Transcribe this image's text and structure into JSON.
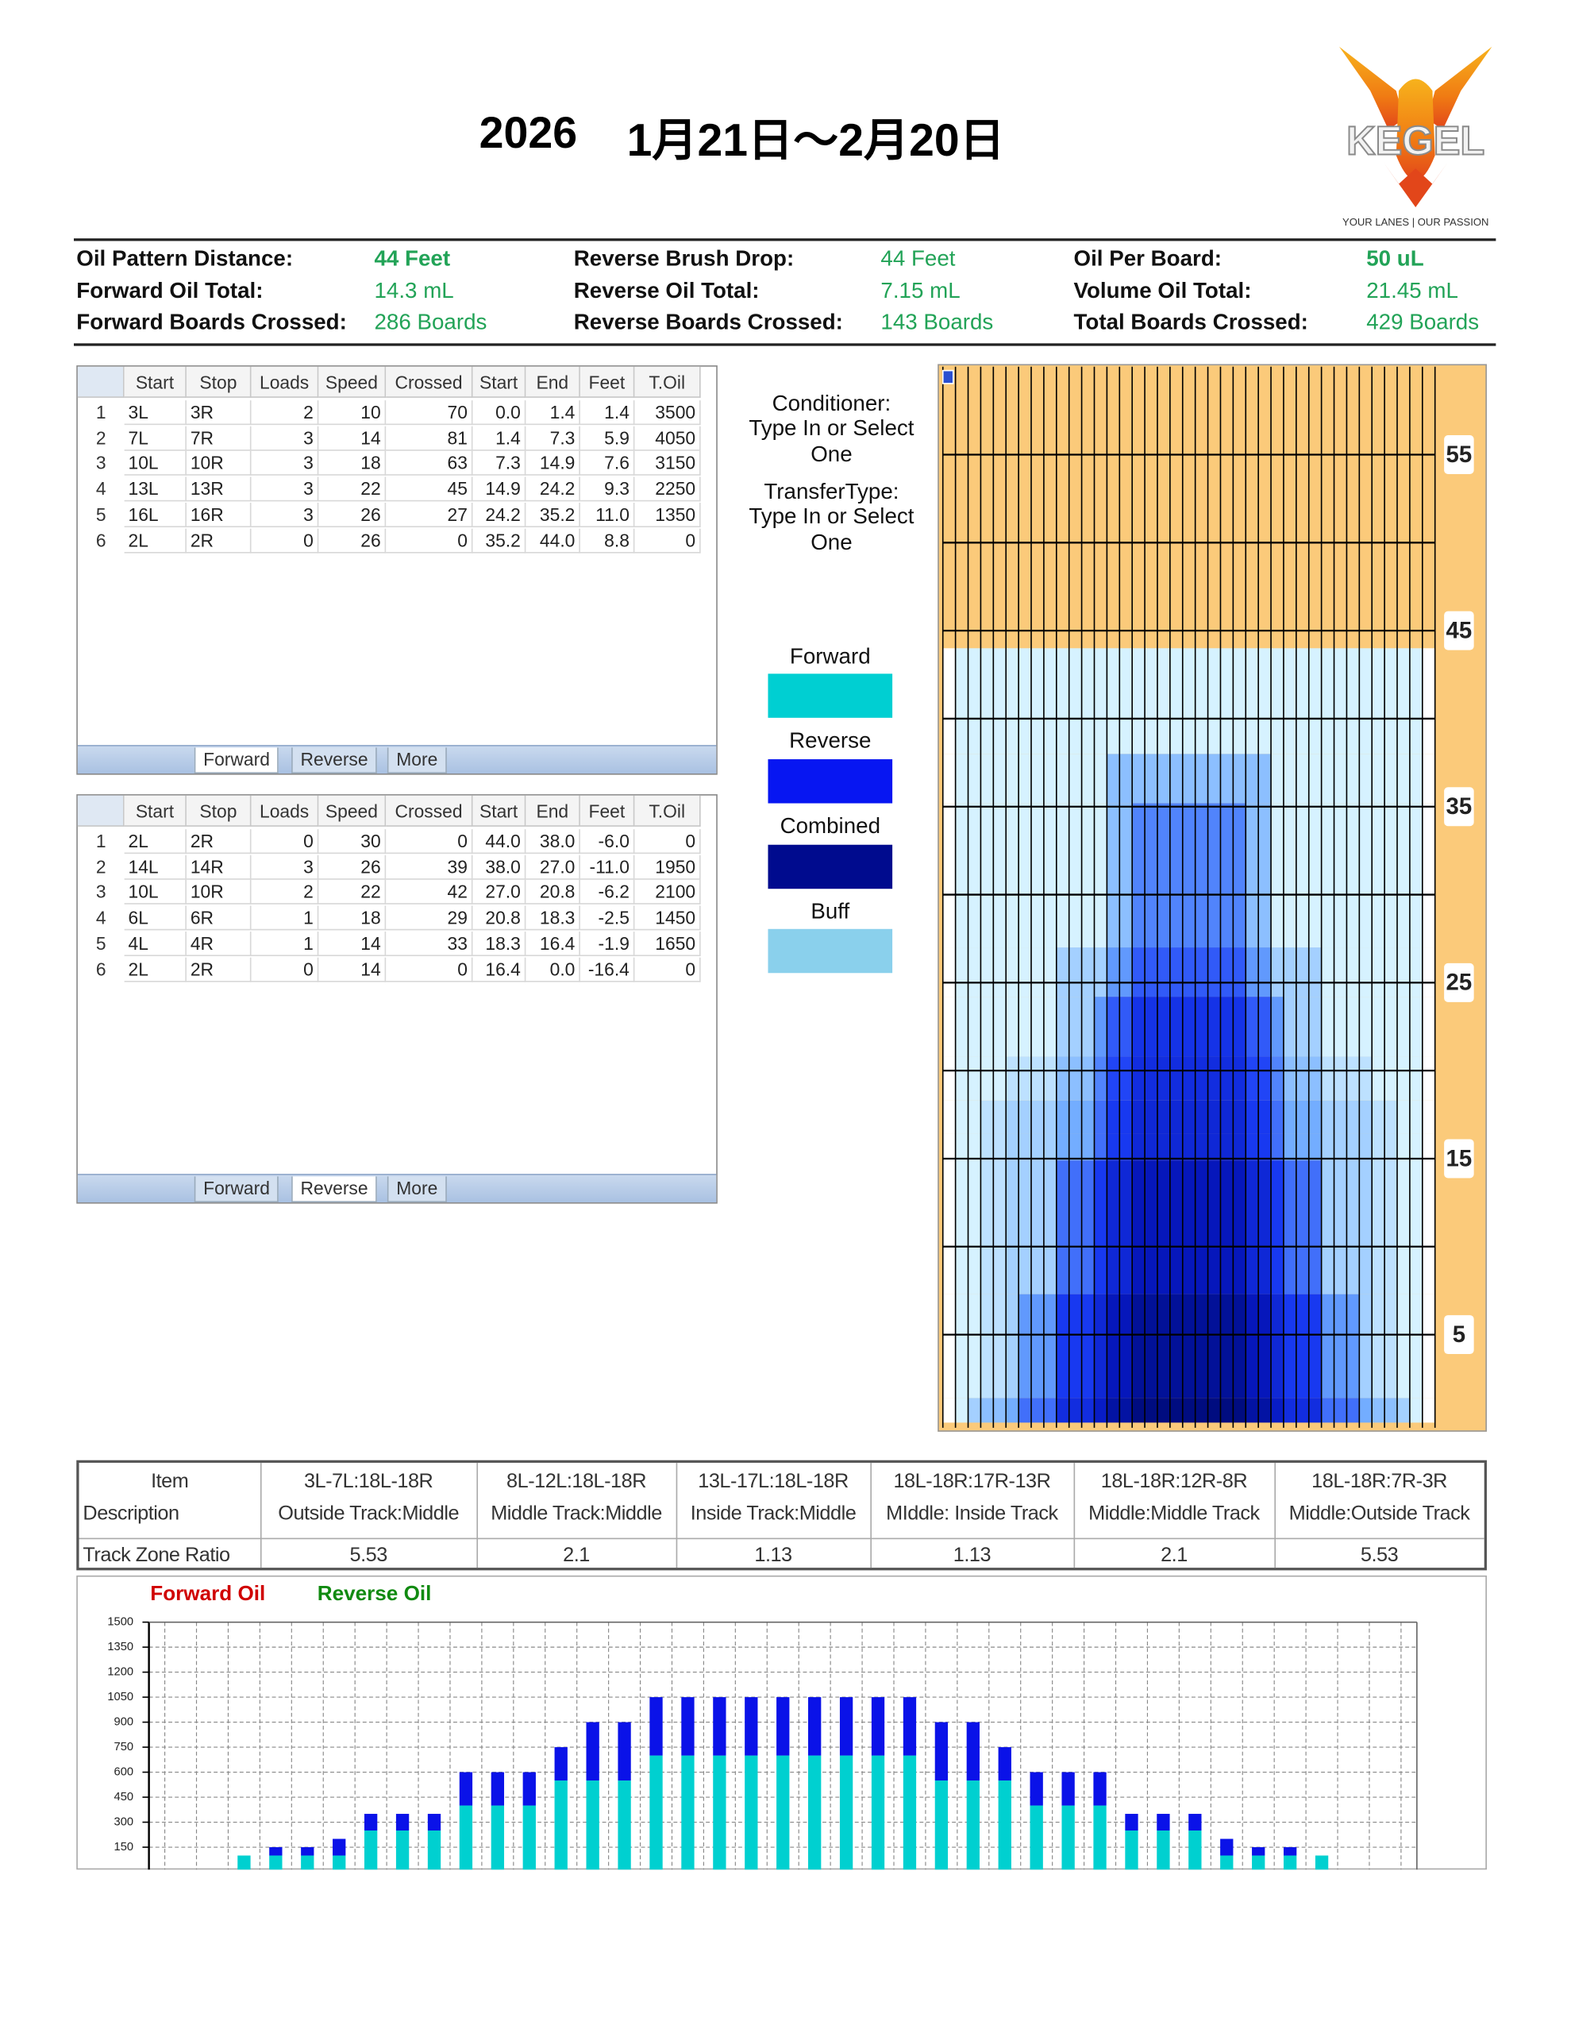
{
  "header": {
    "year": "2026",
    "date": "1月21日～2月20日",
    "logo": "KEGEL",
    "tagline": "YOUR LANES | OUR PASSION"
  },
  "summary": [
    {
      "label": "Oil Pattern Distance:",
      "value": "44 Feet"
    },
    {
      "label": "Forward Oil Total:",
      "value": "14.3 mL"
    },
    {
      "label": "Forward Boards Crossed:",
      "value": "286 Boards"
    },
    {
      "label": "Reverse Brush Drop:",
      "value": "44 Feet"
    },
    {
      "label": "Reverse Oil Total:",
      "value": "7.15 mL"
    },
    {
      "label": "Reverse Boards Crossed:",
      "value": "143 Boards"
    },
    {
      "label": "Oil Per Board:",
      "value": "50 uL"
    },
    {
      "label": "Volume Oil Total:",
      "value": "21.45 mL"
    },
    {
      "label": "Total Boards Crossed:",
      "value": "429 Boards"
    }
  ],
  "forward_table": {
    "header": [
      "Start",
      "Stop",
      "Loads",
      "Speed",
      "Crossed",
      "Start",
      "End",
      "Feet",
      "T.Oil"
    ],
    "rows": [
      [
        "1",
        "3L",
        "3R",
        "2",
        "10",
        "70",
        "0.0",
        "1.4",
        "1.4",
        "3500"
      ],
      [
        "2",
        "7L",
        "7R",
        "3",
        "14",
        "81",
        "1.4",
        "7.3",
        "5.9",
        "4050"
      ],
      [
        "3",
        "10L",
        "10R",
        "3",
        "18",
        "63",
        "7.3",
        "14.9",
        "7.6",
        "3150"
      ],
      [
        "4",
        "13L",
        "13R",
        "3",
        "22",
        "45",
        "14.9",
        "24.2",
        "9.3",
        "2250"
      ],
      [
        "5",
        "16L",
        "16R",
        "3",
        "26",
        "27",
        "24.2",
        "35.2",
        "11.0",
        "1350"
      ],
      [
        "6",
        "2L",
        "2R",
        "0",
        "26",
        "0",
        "35.2",
        "44.0",
        "8.8",
        "0"
      ]
    ],
    "tabs": [
      "Forward",
      "Reverse",
      "More"
    ],
    "active": 0
  },
  "reverse_table": {
    "header": [
      "Start",
      "Stop",
      "Loads",
      "Speed",
      "Crossed",
      "Start",
      "End",
      "Feet",
      "T.Oil"
    ],
    "rows": [
      [
        "1",
        "2L",
        "2R",
        "0",
        "30",
        "0",
        "44.0",
        "38.0",
        "-6.0",
        "0"
      ],
      [
        "2",
        "14L",
        "14R",
        "3",
        "26",
        "39",
        "38.0",
        "27.0",
        "-11.0",
        "1950"
      ],
      [
        "3",
        "10L",
        "10R",
        "2",
        "22",
        "42",
        "27.0",
        "20.8",
        "-6.2",
        "2100"
      ],
      [
        "4",
        "6L",
        "6R",
        "1",
        "18",
        "29",
        "20.8",
        "18.3",
        "-2.5",
        "1450"
      ],
      [
        "5",
        "4L",
        "4R",
        "1",
        "14",
        "33",
        "18.3",
        "16.4",
        "-1.9",
        "1650"
      ],
      [
        "6",
        "2L",
        "2R",
        "0",
        "14",
        "0",
        "16.4",
        "0.0",
        "-16.4",
        "0"
      ]
    ],
    "tabs": [
      "Forward",
      "Reverse",
      "More"
    ],
    "active": 1
  },
  "settings_panel": {
    "conditioner_label": "Conditioner:",
    "conditioner_value": "Type In or Select One",
    "transfer_label": "TransferType:",
    "transfer_value": "Type In or Select One"
  },
  "legend": [
    {
      "name": "Forward",
      "color": "#00cfd2"
    },
    {
      "name": "Reverse",
      "color": "#0716f2"
    },
    {
      "name": "Combined",
      "color": "#000b8e"
    },
    {
      "name": "Buff",
      "color": "#8ad0ec"
    }
  ],
  "lane_graphic": {
    "ylim": [
      0,
      60
    ],
    "ticks": [
      55,
      45,
      35,
      25,
      15,
      5
    ]
  },
  "track_zone_table": {
    "item_label": [
      "Item",
      "Description"
    ],
    "ratio_label": "Track Zone Ratio",
    "zones": [
      {
        "range": "3L-7L:18L-18R",
        "description": "Outside Track:Middle",
        "ratio": "5.53"
      },
      {
        "range": "8L-12L:18L-18R",
        "description": "Middle Track:Middle",
        "ratio": "2.1"
      },
      {
        "range": "13L-17L:18L-18R",
        "description": "Inside Track:Middle",
        "ratio": "1.13"
      },
      {
        "range": "18L-18R:17R-13R",
        "description": "MIddle: Inside Track",
        "ratio": "1.13"
      },
      {
        "range": "18L-18R:12R-8R",
        "description": "Middle:Middle Track",
        "ratio": "2.1"
      },
      {
        "range": "18L-18R:7R-3R",
        "description": "Middle:Outside Track",
        "ratio": "5.53"
      }
    ]
  },
  "chart_data": {
    "type": "bar",
    "stacked": true,
    "categories": [
      null,
      null,
      null,
      null,
      null,
      null,
      null,
      null,
      null,
      null,
      null,
      null,
      null,
      null,
      null,
      null,
      null,
      null,
      null,
      null,
      null,
      null,
      null,
      null,
      null,
      null,
      null,
      null,
      null,
      null,
      null,
      null,
      null,
      null,
      null,
      null,
      null,
      null,
      null
    ],
    "series": [
      {
        "name": "Forward Oil",
        "color": "#00d0d0",
        "values": [
          0,
          0,
          100,
          100,
          100,
          100,
          250,
          250,
          250,
          400,
          400,
          400,
          550,
          550,
          550,
          700,
          700,
          700,
          700,
          700,
          700,
          700,
          700,
          700,
          550,
          550,
          550,
          400,
          400,
          400,
          250,
          250,
          250,
          100,
          100,
          100,
          100,
          0,
          0
        ]
      },
      {
        "name": "Reverse Oil",
        "color": "#0a12e8",
        "values": [
          0,
          0,
          0,
          50,
          50,
          100,
          100,
          100,
          100,
          200,
          200,
          200,
          200,
          350,
          350,
          350,
          350,
          350,
          350,
          350,
          350,
          350,
          350,
          350,
          350,
          350,
          200,
          200,
          200,
          200,
          100,
          100,
          100,
          100,
          50,
          50,
          0,
          0,
          0
        ]
      }
    ],
    "ylim": [
      0,
      1500
    ],
    "yticks": [
      150,
      300,
      450,
      600,
      750,
      900,
      1050,
      1200,
      1350,
      1500
    ],
    "grid": true
  }
}
